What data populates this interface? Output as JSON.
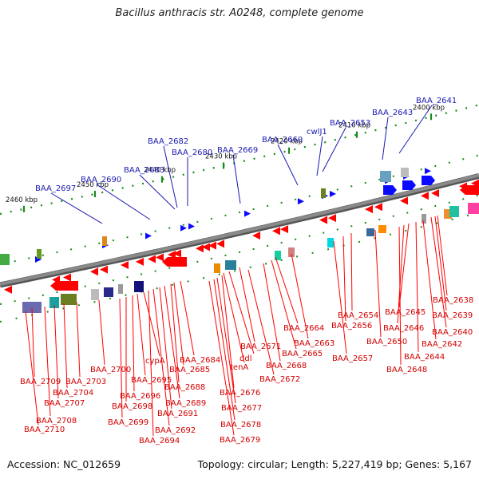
{
  "title": "Bacillus anthracis str. A0248, complete genome",
  "footer": {
    "accession": "Accession: NC_012659",
    "summary": "Topology: circular; Length: 5,227,419 bp; Genes: 5,167"
  },
  "colors": {
    "forward": "#0a0aff",
    "reverse": "#ff0000",
    "backbone": "#8a8a8a",
    "ticks": "#1a8a1a"
  },
  "ruler": [
    {
      "label": "2400 kbp"
    },
    {
      "label": "2410 kbp"
    },
    {
      "label": "2420 kbp"
    },
    {
      "label": "2430 kbp"
    },
    {
      "label": "2440 kbp"
    },
    {
      "label": "2450 kbp"
    },
    {
      "label": "2460 kbp"
    }
  ],
  "top_genes": [
    {
      "name": "BAA_2641"
    },
    {
      "name": "BAA_2643"
    },
    {
      "name": "BAA_2653"
    },
    {
      "name": "cwlJ1"
    },
    {
      "name": "BAA_2660"
    },
    {
      "name": "BAA_2669"
    },
    {
      "name": "BAA_2680"
    },
    {
      "name": "BAA_2682"
    },
    {
      "name": "BAA_2683"
    },
    {
      "name": "BAA_2690"
    },
    {
      "name": "BAA_2697"
    }
  ],
  "bottom_genes": [
    {
      "name": "BAA_2638"
    },
    {
      "name": "BAA_2639"
    },
    {
      "name": "BAA_2640"
    },
    {
      "name": "BAA_2642"
    },
    {
      "name": "BAA_2644"
    },
    {
      "name": "BAA_2645"
    },
    {
      "name": "BAA_2646"
    },
    {
      "name": "BAA_2648"
    },
    {
      "name": "BAA_2650"
    },
    {
      "name": "BAA_2654"
    },
    {
      "name": "BAA_2656"
    },
    {
      "name": "BAA_2657"
    },
    {
      "name": "BAA_2663"
    },
    {
      "name": "BAA_2664"
    },
    {
      "name": "BAA_2665"
    },
    {
      "name": "BAA_2668"
    },
    {
      "name": "BAA_2671"
    },
    {
      "name": "BAA_2672"
    },
    {
      "name": "ddl"
    },
    {
      "name": "tenA"
    },
    {
      "name": "BAA_2676"
    },
    {
      "name": "BAA_2677"
    },
    {
      "name": "BAA_2678"
    },
    {
      "name": "BAA_2679"
    },
    {
      "name": "BAA_2684"
    },
    {
      "name": "BAA_2685"
    },
    {
      "name": "BAA_2688"
    },
    {
      "name": "BAA_2689"
    },
    {
      "name": "BAA_2691"
    },
    {
      "name": "BAA_2692"
    },
    {
      "name": "BAA_2694"
    },
    {
      "name": "cypA"
    },
    {
      "name": "BAA_2695"
    },
    {
      "name": "BAA_2696"
    },
    {
      "name": "BAA_2698"
    },
    {
      "name": "BAA_2699"
    },
    {
      "name": "BAA_2700"
    },
    {
      "name": "BAA_2703"
    },
    {
      "name": "BAA_2704"
    },
    {
      "name": "BAA_2707"
    },
    {
      "name": "BAA_2708"
    },
    {
      "name": "BAA_2709"
    },
    {
      "name": "BAA_2710"
    }
  ]
}
